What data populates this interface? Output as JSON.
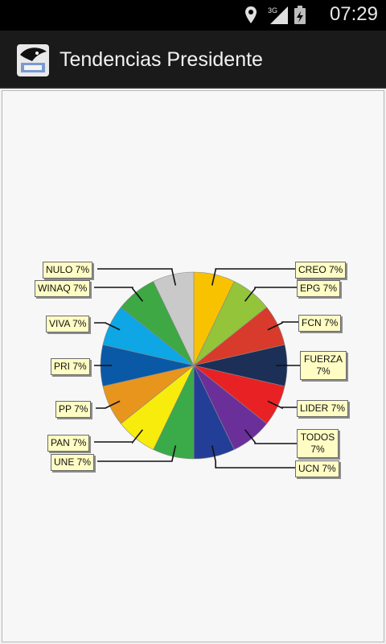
{
  "status_bar": {
    "time": "07:29",
    "network": "3G",
    "icons": [
      "location-icon",
      "signal-icon",
      "battery-icon"
    ]
  },
  "action_bar": {
    "title": "Tendencias Presidente",
    "icon": "app-logo-icon"
  },
  "chart_data": {
    "type": "pie",
    "title": "",
    "slices": [
      {
        "label": "CREO 7%",
        "value": 7,
        "color": "#f8c200"
      },
      {
        "label": "EPG 7%",
        "value": 7,
        "color": "#93c43a"
      },
      {
        "label": "FCN 7%",
        "value": 7,
        "color": "#d83b2b"
      },
      {
        "label": "FUERZA 7%",
        "value": 7,
        "color": "#1c2f57"
      },
      {
        "label": "LIDER 7%",
        "value": 7,
        "color": "#e82224"
      },
      {
        "label": "TODOS 7%",
        "value": 7,
        "color": "#6b2f9a"
      },
      {
        "label": "UCN 7%",
        "value": 7,
        "color": "#233e96"
      },
      {
        "label": "UNE 7%",
        "value": 7,
        "color": "#3baa48"
      },
      {
        "label": "PAN 7%",
        "value": 7,
        "color": "#f8ec0c"
      },
      {
        "label": "PP 7%",
        "value": 7,
        "color": "#e8951e"
      },
      {
        "label": "PRI 7%",
        "value": 7,
        "color": "#0a59a6"
      },
      {
        "label": "VIVA 7%",
        "value": 7,
        "color": "#0ea6e4"
      },
      {
        "label": "WINAQ 7%",
        "value": 7,
        "color": "#3da844"
      },
      {
        "label": "NULO 7%",
        "value": 7,
        "color": "#c9c9c9"
      }
    ]
  }
}
